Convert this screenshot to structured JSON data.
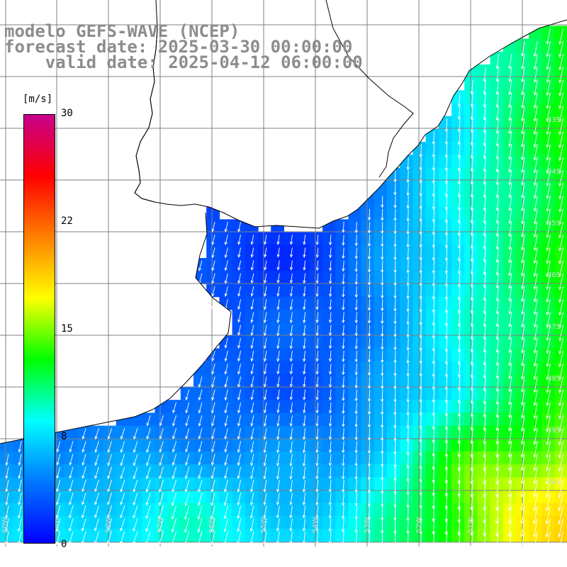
{
  "header": {
    "line1": "modelo GEFS-WAVE (NCEP)",
    "line2": "forecast date: 2025-03-30 00:00:00",
    "line3": "    valid date: 2025-04-12 06:00:00"
  },
  "legend": {
    "unit": "[m/s]",
    "ticks": [
      {
        "label": "30",
        "value": 30
      },
      {
        "label": "22",
        "value": 22
      },
      {
        "label": "15",
        "value": 15
      },
      {
        "label": "8",
        "value": 8
      },
      {
        "label": "0",
        "value": 0
      }
    ],
    "range": [
      0,
      30
    ],
    "colors": [
      "#0000ff",
      "#0078ff",
      "#00ffff",
      "#00ff00",
      "#ffff00",
      "#ff8000",
      "#ff0000",
      "#c8008c"
    ]
  },
  "grid_labels": {
    "lon": [
      "60W",
      "59W",
      "58W",
      "57W",
      "56W",
      "55W",
      "54W",
      "53W",
      "52W",
      "51W"
    ],
    "lat": [
      "33S",
      "34S",
      "35S",
      "36S",
      "37S",
      "38S",
      "39S",
      "40S"
    ]
  },
  "chart_data": {
    "type": "heatmap",
    "title": "modelo GEFS-WAVE (NCEP)",
    "variable": "wind speed",
    "unit": "m/s",
    "color_range": [
      0,
      30
    ],
    "coastal_speeds_approx": [
      3,
      5
    ],
    "offshore_speeds_approx": [
      10,
      14
    ],
    "dominant_direction": "from the northeast (arrows point south-southwest)"
  }
}
